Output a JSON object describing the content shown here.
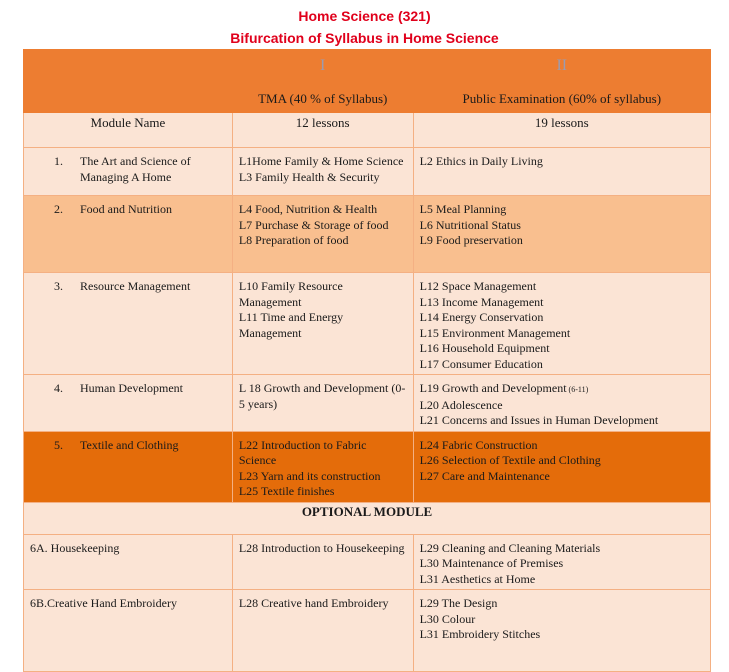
{
  "title": "Home Science  (321)",
  "subtitle": "Bifurcation of Syllabus in Home Science",
  "header": {
    "col2_roman": "I",
    "col3_roman": "II",
    "col2_title": "TMA (40 % of Syllabus)",
    "col3_title": "Public Examination (60% of syllabus)",
    "col1_label": "Module Name",
    "col2_count": "12 lessons",
    "col3_count": "19  lessons"
  },
  "rows": [
    {
      "num": "1.",
      "module": "The Art and Science of Managing A Home",
      "tma": [
        "L1Home Family & Home Science",
        "L3 Family Health & Security"
      ],
      "public": [
        "L2 Ethics in Daily Living"
      ]
    },
    {
      "num": "2.",
      "module": "Food and Nutrition",
      "tma": [
        "L4 Food, Nutrition & Health",
        "L7 Purchase & Storage of food",
        "L8 Preparation of food"
      ],
      "public": [
        "L5 Meal Planning",
        "L6 Nutritional Status",
        "L9 Food preservation"
      ]
    },
    {
      "num": "3.",
      "module": "Resource Management",
      "tma": [
        "L10 Family Resource Management",
        "L11 Time and Energy Management"
      ],
      "public": [
        "L12 Space Management",
        "L13 Income Management",
        "L14 Energy Conservation",
        "L15 Environment Management",
        "L16 Household Equipment",
        "L17 Consumer Education"
      ]
    },
    {
      "num": "4.",
      "module": "Human Development",
      "tma": [
        "L 18 Growth and Development (0-5 years)"
      ],
      "public": [
        "L19 Growth and Development",
        "L20 Adolescence",
        "L21 Concerns and Issues in Human Development"
      ],
      "public_note": "(6-11)"
    },
    {
      "num": "5.",
      "module": "Textile and Clothing",
      "tma": [
        "L22 Introduction to Fabric Science",
        "L23 Yarn and its construction",
        "L25 Textile finishes"
      ],
      "public": [
        "L24 Fabric Construction",
        "L26  Selection of Textile and Clothing",
        "L27 Care and Maintenance"
      ]
    }
  ],
  "optional_label": "OPTIONAL MODULE",
  "optional_rows": [
    {
      "module": "6A. Housekeeping",
      "tma": [
        "L28 Introduction to Housekeeping"
      ],
      "public": [
        "L29 Cleaning and Cleaning Materials",
        "L30 Maintenance of Premises",
        "L31 Aesthetics at Home"
      ]
    },
    {
      "module": "6B.Creative Hand Embroidery",
      "tma": [
        "L28 Creative hand Embroidery"
      ],
      "public": [
        "L29 The Design",
        "L30 Colour",
        "L31 Embroidery Stitches"
      ]
    }
  ],
  "colors": {
    "title": "#e0001b",
    "header": "#ed7d31",
    "light": "#fbe4d5",
    "medium": "#f9bf8f",
    "dark": "#e46c0a"
  }
}
